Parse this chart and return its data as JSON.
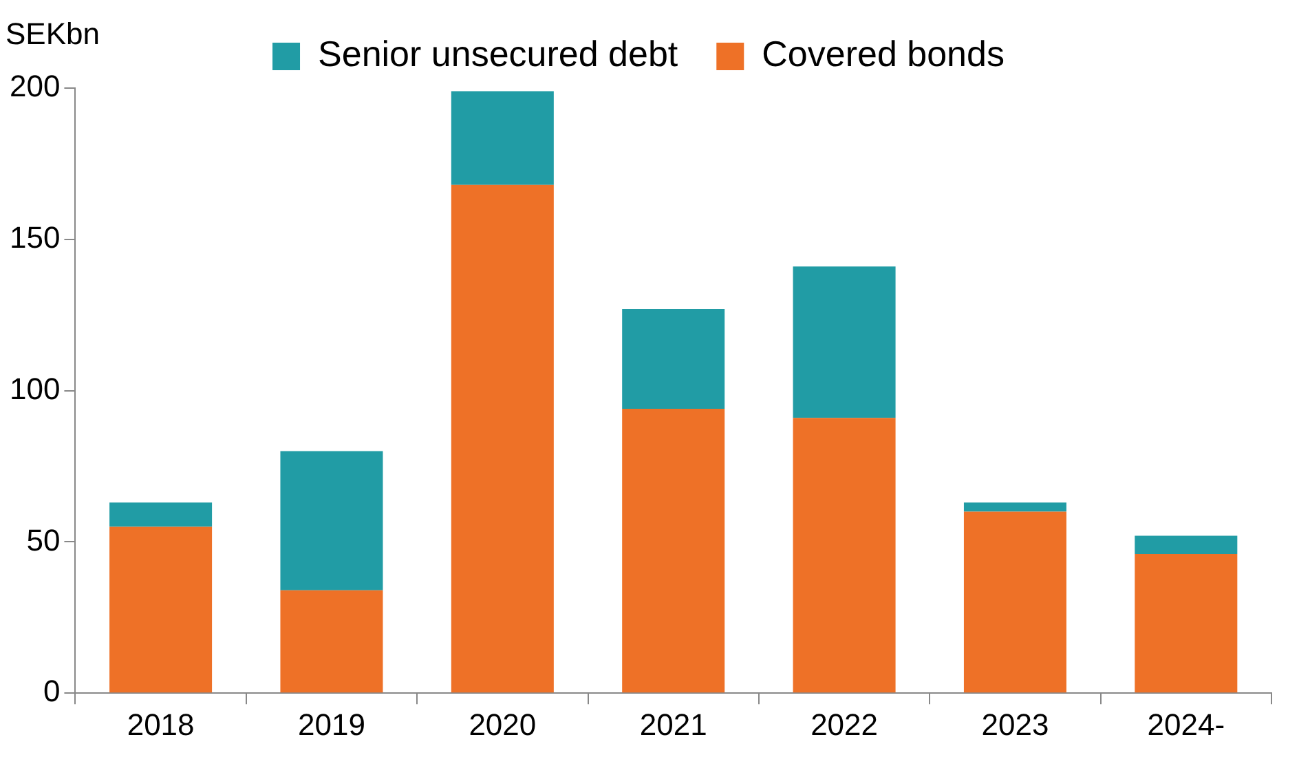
{
  "chart_data": {
    "type": "bar",
    "stacked": true,
    "ylabel": "SEKbn",
    "categories": [
      "2018",
      "2019",
      "2020",
      "2021",
      "2022",
      "2023",
      "2024-"
    ],
    "series": [
      {
        "name": "Covered bonds",
        "color": "#ee7127",
        "values": [
          55,
          34,
          168,
          94,
          91,
          60,
          46
        ]
      },
      {
        "name": "Senior unsecured debt",
        "color": "#219ca5",
        "values": [
          8,
          46,
          31,
          33,
          50,
          3,
          6
        ]
      }
    ],
    "ylim": [
      0,
      200
    ],
    "yticks": [
      0,
      50,
      100,
      150,
      200
    ],
    "grid": false,
    "legend": "top"
  }
}
